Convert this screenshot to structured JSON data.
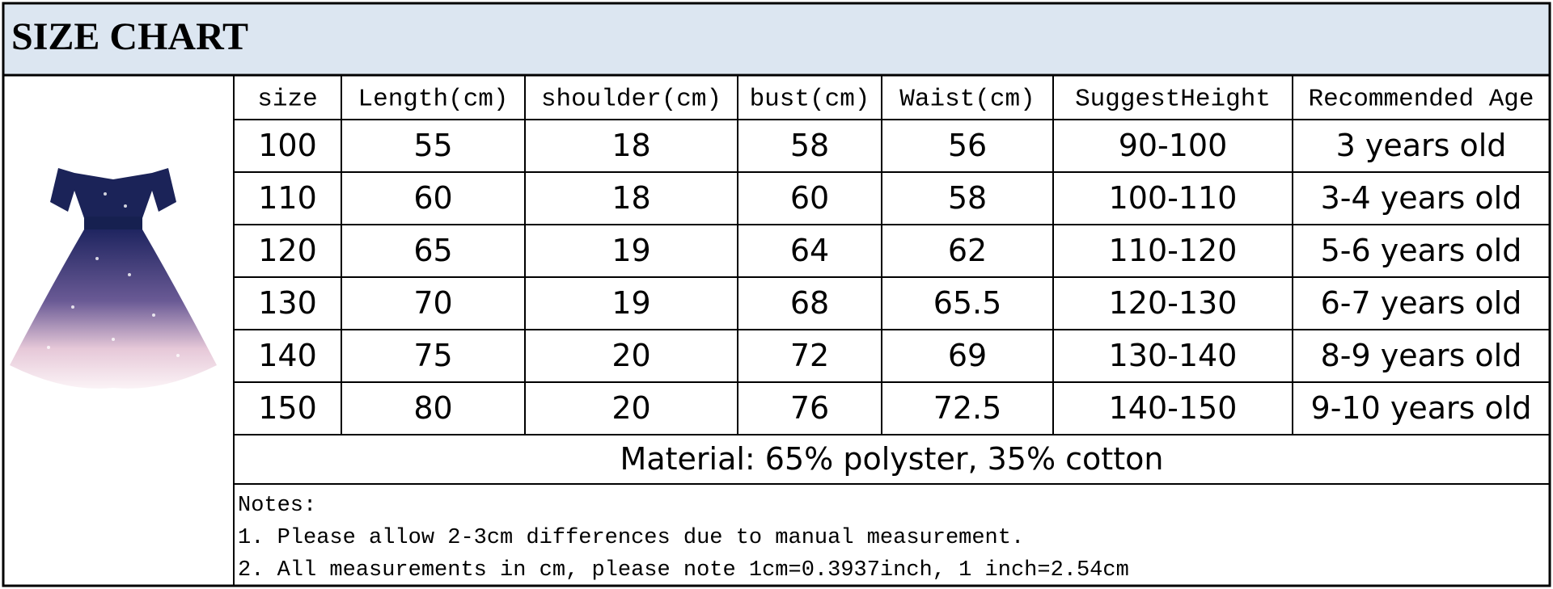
{
  "header": {
    "title": "SIZE CHART"
  },
  "table": {
    "columns": [
      "size",
      "Length(cm)",
      "shoulder(cm)",
      "bust(cm)",
      "Waist(cm)",
      "SuggestHeight",
      "Recommended Age"
    ],
    "rows": [
      [
        "100",
        "55",
        "18",
        "58",
        "56",
        "90-100",
        "3 years old"
      ],
      [
        "110",
        "60",
        "18",
        "60",
        "58",
        "100-110",
        "3-4 years old"
      ],
      [
        "120",
        "65",
        "19",
        "64",
        "62",
        "110-120",
        "5-6 years old"
      ],
      [
        "130",
        "70",
        "19",
        "68",
        "65.5",
        "120-130",
        "6-7 years old"
      ],
      [
        "140",
        "75",
        "20",
        "72",
        "69",
        "130-140",
        "8-9 years old"
      ],
      [
        "150",
        "80",
        "20",
        "76",
        "72.5",
        "140-150",
        "9-10 years old"
      ]
    ],
    "material": "Material: 65% polyster, 35% cotton"
  },
  "notes": {
    "title": "Notes:",
    "lines": [
      "1. Please allow 2-3cm differences due to manual measurement.",
      "2. All measurements in cm, please note 1cm=0.3937inch, 1 inch=2.54cm"
    ]
  }
}
